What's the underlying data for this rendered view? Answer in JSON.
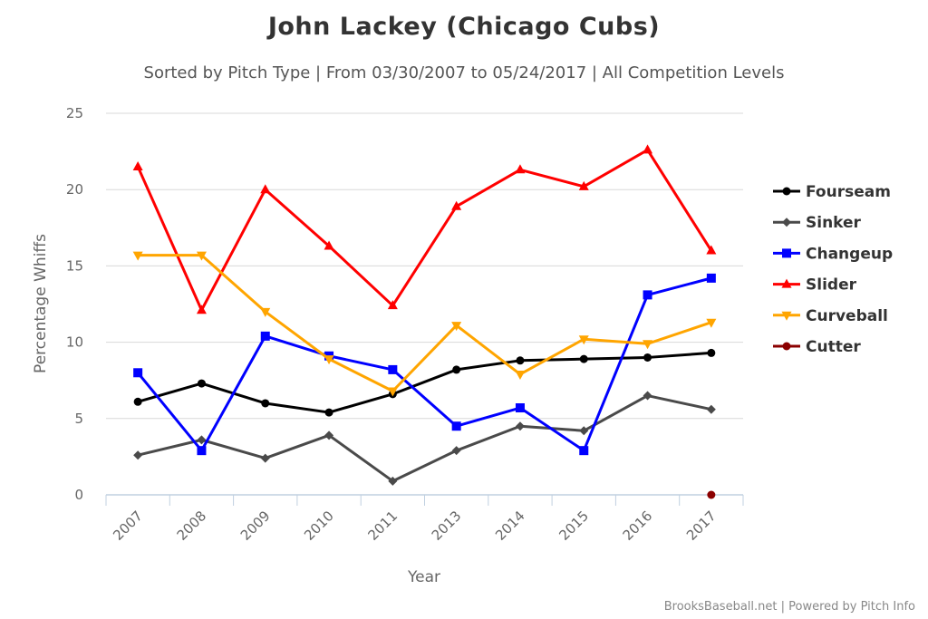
{
  "title": "John Lackey (Chicago Cubs)",
  "subtitle": "Sorted by Pitch Type | From 03/30/2007 to 05/24/2017 | All Competition Levels",
  "credits": "BrooksBaseball.net | Powered by Pitch Info",
  "chart_data": {
    "type": "line",
    "title": "John Lackey (Chicago Cubs)",
    "xlabel": "Year",
    "ylabel": "Percentage Whiffs",
    "categories": [
      "2007",
      "2008",
      "2009",
      "2010",
      "2011",
      "2013",
      "2014",
      "2015",
      "2016",
      "2017"
    ],
    "ylim": [
      0,
      25
    ],
    "yticks": [
      0,
      5,
      10,
      15,
      20,
      25
    ],
    "grid": true,
    "legend_position": "right",
    "series": [
      {
        "name": "Fourseam",
        "color": "#000000",
        "marker": "circle",
        "values": [
          6.1,
          7.3,
          6.0,
          5.4,
          6.6,
          8.2,
          8.8,
          8.9,
          9.0,
          9.3
        ]
      },
      {
        "name": "Sinker",
        "color": "#4a4a4a",
        "marker": "diamond",
        "values": [
          2.6,
          3.6,
          2.4,
          3.9,
          0.9,
          2.9,
          4.5,
          4.2,
          6.5,
          5.6
        ]
      },
      {
        "name": "Changeup",
        "color": "#0000ff",
        "marker": "square",
        "values": [
          8.0,
          2.9,
          10.4,
          9.1,
          8.2,
          4.5,
          5.7,
          2.9,
          13.1,
          14.2
        ]
      },
      {
        "name": "Slider",
        "color": "#ff0000",
        "marker": "triangle",
        "values": [
          21.5,
          12.1,
          20.0,
          16.3,
          12.4,
          18.9,
          21.3,
          20.2,
          22.6,
          16.0
        ]
      },
      {
        "name": "Curveball",
        "color": "#ffa500",
        "marker": "triangle-down",
        "values": [
          15.7,
          15.7,
          12.0,
          8.9,
          6.8,
          11.1,
          7.9,
          10.2,
          9.9,
          11.3
        ]
      },
      {
        "name": "Cutter",
        "color": "#8b0000",
        "marker": "circle",
        "values": [
          null,
          null,
          null,
          null,
          null,
          null,
          null,
          null,
          null,
          0.0
        ]
      }
    ]
  }
}
